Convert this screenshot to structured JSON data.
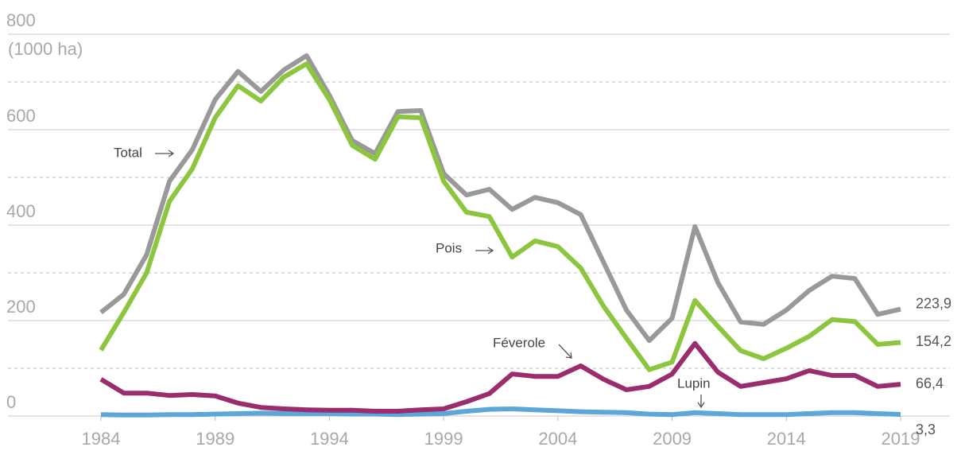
{
  "chart_data": {
    "type": "line",
    "y_unit_label": "(1000 ha)",
    "x": [
      1984,
      1985,
      1986,
      1987,
      1988,
      1989,
      1990,
      1991,
      1992,
      1993,
      1994,
      1995,
      1996,
      1997,
      1998,
      1999,
      2000,
      2001,
      2002,
      2003,
      2004,
      2005,
      2006,
      2007,
      2008,
      2009,
      2010,
      2011,
      2012,
      2013,
      2014,
      2015,
      2016,
      2017,
      2018,
      2019
    ],
    "series": [
      {
        "name": "Total",
        "color": "#999999",
        "values": [
          217,
          255,
          338,
          492,
          558,
          663,
          722,
          680,
          725,
          755,
          672,
          577,
          550,
          638,
          640,
          508,
          463,
          475,
          433,
          458,
          447,
          422,
          322,
          222,
          158,
          205,
          397,
          280,
          197,
          192,
          222,
          263,
          293,
          288,
          213,
          223.9
        ],
        "value_labels": {
          "35": "223,9"
        }
      },
      {
        "name": "Pois",
        "color": "#8cc63e",
        "values": [
          138,
          217,
          300,
          450,
          518,
          625,
          692,
          660,
          710,
          738,
          663,
          567,
          538,
          627,
          625,
          492,
          427,
          418,
          333,
          367,
          355,
          310,
          230,
          163,
          97,
          113,
          242,
          188,
          137,
          120,
          142,
          167,
          202,
          198,
          150,
          154.2
        ],
        "value_labels": {
          "35": "154,2"
        }
      },
      {
        "name": "Féverole",
        "color": "#9b2d6f",
        "values": [
          77,
          48,
          48,
          43,
          45,
          42,
          27,
          18,
          15,
          13,
          12,
          12,
          10,
          10,
          13,
          15,
          30,
          47,
          88,
          83,
          83,
          105,
          77,
          55,
          62,
          88,
          152,
          92,
          62,
          70,
          78,
          95,
          85,
          85,
          62,
          66.4
        ],
        "value_labels": {
          "35": "66,4"
        }
      },
      {
        "name": "Lupin",
        "color": "#5ba7d8",
        "values": [
          3,
          2,
          2,
          3,
          3,
          4,
          5,
          6,
          5,
          5,
          5,
          4,
          4,
          3,
          4,
          5,
          10,
          14,
          15,
          13,
          11,
          9,
          8,
          7,
          4,
          3,
          7,
          5,
          3,
          3,
          3,
          5,
          7,
          7,
          5,
          3.3
        ],
        "value_labels": {
          "35": "3,3"
        }
      }
    ],
    "xlim": [
      1984,
      2019
    ],
    "xticks": [
      1984,
      1989,
      1994,
      1999,
      2004,
      2009,
      2014,
      2019
    ],
    "ylim": [
      0,
      800
    ],
    "yticks": [
      0,
      200,
      400,
      600,
      800
    ],
    "yticks_minor": [
      100,
      300,
      500,
      700
    ],
    "grid": true
  }
}
